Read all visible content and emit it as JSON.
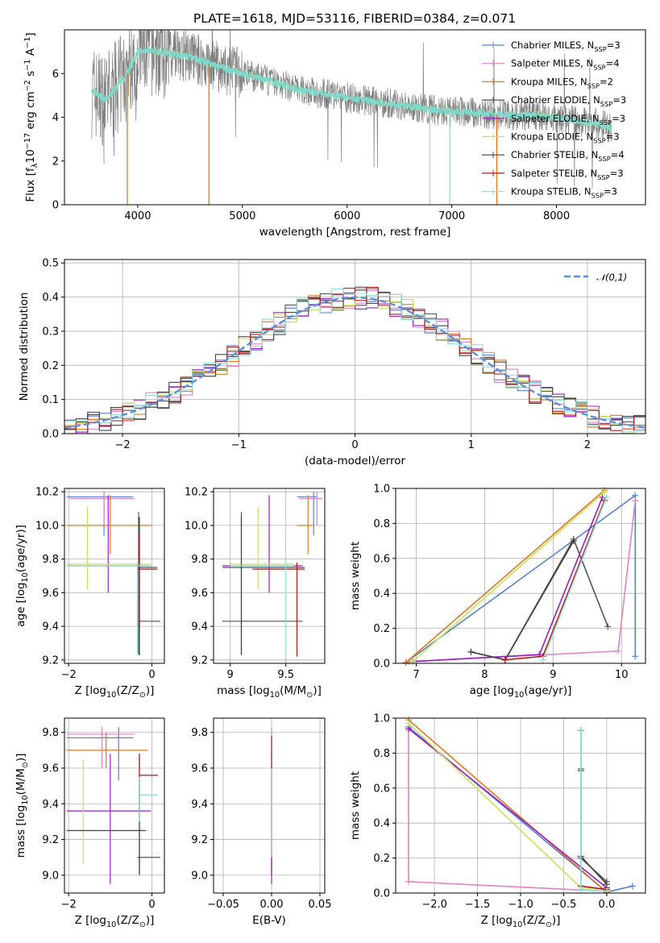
{
  "title": "PLATE=1618, MJD=53116, FIBERID=0384, z=0.071",
  "legend": [
    {
      "label": "Chabrier MILES, N<sub>SSP</sub>=3",
      "color": "#5a7fd6"
    },
    {
      "label": "Salpeter MILES, N<sub>SSP</sub>=4",
      "color": "#e383c0"
    },
    {
      "label": "Kroupa MILES, N<sub>SSP</sub>=2",
      "color": "#e07a1f"
    },
    {
      "label": "Chabrier ELODIE, N<sub>SSP</sub>=3",
      "color": "#555555"
    },
    {
      "label": "Salpeter ELODIE, N<sub>SSP</sub>=3",
      "color": "#9b1fc1"
    },
    {
      "label": "Kroupa ELODIE, N<sub>SSP</sub>=3",
      "color": "#c6e35a"
    },
    {
      "label": "Chabrier STELIB, N<sub>SSP</sub>=4",
      "color": "#444444"
    },
    {
      "label": "Salpeter STELIB, N<sub>SSP</sub>=3",
      "color": "#b01c1c"
    },
    {
      "label": "Kroupa STELIB, N<sub>SSP</sub>=3",
      "color": "#8fe0dc"
    }
  ],
  "chart_data": [
    {
      "id": "spectrum",
      "type": "line",
      "xlabel": "wavelength [Angstrom, rest frame]",
      "ylabel": "Flux [f<sub>λ</sub>10<sup>−17</sup> erg cm<sup>−2</sup> s<sup>−1</sup> A<sup>−1</sup>]",
      "xlim": [
        3300,
        8850
      ],
      "ylim": [
        0,
        8
      ],
      "xticks": [
        4000,
        5000,
        6000,
        7000,
        8000
      ],
      "yticks": [
        0,
        2,
        4,
        6
      ],
      "data_color": "#808080",
      "model_color": "#7ad9d3",
      "continuum_x": [
        3560,
        3700,
        3900,
        4000,
        4100,
        4300,
        4500,
        4700,
        5000,
        5300,
        5600,
        6000,
        6300,
        6600,
        6900,
        7200,
        7500,
        7800,
        8100,
        8400,
        8530
      ],
      "continuum_y": [
        5.2,
        4.8,
        6.0,
        7.0,
        7.1,
        6.9,
        6.8,
        6.4,
        6.0,
        5.6,
        5.2,
        4.9,
        4.7,
        4.5,
        4.3,
        4.2,
        4.1,
        4.1,
        3.9,
        3.7,
        3.5
      ],
      "model_dips": [
        {
          "x": 3900,
          "color": "#e07a1f"
        },
        {
          "x": 4680,
          "color": "#e07a1f"
        },
        {
          "x": 6790,
          "color": "#8fe0dc"
        },
        {
          "x": 6980,
          "color": "#8fe0dc"
        },
        {
          "x": 7430,
          "color": "#e07a1f"
        }
      ]
    },
    {
      "id": "residuals",
      "type": "histogram",
      "xlabel": "(data-model)/error",
      "ylabel": "Normed distribution",
      "xlim": [
        -2.5,
        2.5
      ],
      "ylim": [
        0,
        0.51
      ],
      "xticks": [
        -2,
        -1,
        0,
        1,
        2
      ],
      "yticks": [
        0.0,
        0.1,
        0.2,
        0.3,
        0.4,
        0.5
      ],
      "bin_width": 0.1,
      "gaussian_label": "𝒩(0,1)",
      "gaussian_color": "#5b8fd9"
    },
    {
      "id": "age-vs-Z",
      "type": "errorbar",
      "xlabel": "Z [log<sub>10</sub>(<i>Z</i>/<i>Z</i><sub>⊙</sub>)]",
      "ylabel": "age  [log<sub>10</sub>(<i>age</i>/<i>yr</i>)]",
      "xlim": [
        -2.1,
        0.3
      ],
      "ylim": [
        9.18,
        10.22
      ],
      "xticks": [
        -2,
        0
      ],
      "yticks": [
        9.2,
        9.4,
        9.6,
        9.8,
        10.0,
        10.2
      ],
      "points": [
        {
          "x": -1.15,
          "y": 10.17,
          "xlo": -2.05,
          "xhi": -0.45,
          "ylo": 9.94,
          "yhi": 10.2,
          "color": "#5a7fd6"
        },
        {
          "x": -1.15,
          "y": 10.16,
          "xlo": -2.0,
          "xhi": -0.42,
          "ylo": 10.0,
          "yhi": 10.2,
          "color": "#e383c0"
        },
        {
          "x": -1.0,
          "y": 10.0,
          "xlo": -2.05,
          "xhi": 0.0,
          "ylo": 9.83,
          "yhi": 10.18,
          "color": "#e07a1f"
        },
        {
          "x": -0.32,
          "y": 9.43,
          "xlo": -0.35,
          "xhi": 0.2,
          "ylo": 9.23,
          "yhi": 10.08,
          "color": "#555555"
        },
        {
          "x": -1.05,
          "y": 9.76,
          "xlo": -2.05,
          "xhi": -0.02,
          "ylo": 9.6,
          "yhi": 10.18,
          "color": "#9b1fc1"
        },
        {
          "x": -1.55,
          "y": 9.77,
          "xlo": -2.05,
          "xhi": -0.02,
          "ylo": 9.62,
          "yhi": 10.11,
          "color": "#c6e35a"
        },
        {
          "x": -0.3,
          "y": 9.75,
          "xlo": -0.35,
          "xhi": 0.13,
          "ylo": 9.23,
          "yhi": 10.05,
          "color": "#444444"
        },
        {
          "x": -0.3,
          "y": 9.74,
          "xlo": -0.35,
          "xhi": 0.13,
          "ylo": 9.4,
          "yhi": 9.95,
          "color": "#b01c1c"
        },
        {
          "x": -0.35,
          "y": 9.76,
          "xlo": -2.05,
          "xhi": -0.02,
          "ylo": 9.24,
          "yhi": 9.78,
          "color": "#8fe0dc"
        }
      ]
    },
    {
      "id": "age-vs-mass",
      "type": "errorbar",
      "xlabel": "mass [log<sub>10</sub>(<i>M</i>/<i>M</i><sub>⊙</sub>)]",
      "ylabel": "",
      "xlim": [
        8.85,
        9.85
      ],
      "ylim": [
        9.18,
        10.22
      ],
      "xticks": [
        9.0,
        9.5
      ],
      "yticks": [
        9.2,
        9.4,
        9.6,
        9.8,
        10.0,
        10.2
      ],
      "points": [
        {
          "x": 9.75,
          "y": 10.17,
          "xlo": 9.6,
          "xhi": 9.78,
          "ylo": 9.94,
          "yhi": 10.2,
          "color": "#5a7fd6"
        },
        {
          "x": 9.78,
          "y": 10.16,
          "xlo": 9.62,
          "xhi": 9.83,
          "ylo": 10.0,
          "yhi": 10.2,
          "color": "#e383c0"
        },
        {
          "x": 9.7,
          "y": 10.0,
          "xlo": 9.6,
          "xhi": 9.75,
          "ylo": 9.83,
          "yhi": 10.18,
          "color": "#e07a1f"
        },
        {
          "x": 9.1,
          "y": 9.43,
          "xlo": 8.93,
          "xhi": 9.65,
          "ylo": 9.23,
          "yhi": 10.08,
          "color": "#555555"
        },
        {
          "x": 9.35,
          "y": 9.76,
          "xlo": 8.93,
          "xhi": 9.65,
          "ylo": 9.6,
          "yhi": 10.18,
          "color": "#9b1fc1"
        },
        {
          "x": 9.25,
          "y": 9.77,
          "xlo": 9.0,
          "xhi": 9.57,
          "ylo": 9.62,
          "yhi": 10.11,
          "color": "#c6e35a"
        },
        {
          "x": 9.1,
          "y": 9.75,
          "xlo": 8.93,
          "xhi": 9.67,
          "ylo": 9.23,
          "yhi": 10.05,
          "color": "#444444"
        },
        {
          "x": 9.6,
          "y": 9.74,
          "xlo": 9.2,
          "xhi": 9.67,
          "ylo": 9.22,
          "yhi": 9.78,
          "color": "#b01c1c"
        },
        {
          "x": 9.5,
          "y": 9.76,
          "xlo": 9.0,
          "xhi": 9.57,
          "ylo": 9.24,
          "yhi": 9.78,
          "color": "#8fe0dc"
        }
      ]
    },
    {
      "id": "mass-weight-vs-age",
      "type": "line",
      "xlabel": "age  [log<sub>10</sub>(<i>age</i>/<i>yr</i>)]",
      "ylabel": "mass weight",
      "xlim": [
        6.7,
        10.35
      ],
      "ylim": [
        0,
        1.0
      ],
      "xticks": [
        7,
        8,
        9,
        10
      ],
      "yticks": [
        0.0,
        0.2,
        0.4,
        0.6,
        0.8,
        1.0
      ],
      "series": [
        {
          "color": "#5a7fd6",
          "x": [
            6.85,
            10.2,
            10.2
          ],
          "y": [
            0.005,
            0.96,
            0.04
          ]
        },
        {
          "color": "#e383c0",
          "x": [
            6.9,
            9.95,
            10.2,
            10.2
          ],
          "y": [
            0.01,
            0.07,
            0.93,
            0.93
          ]
        },
        {
          "color": "#e07a1f",
          "x": [
            6.85,
            9.75
          ],
          "y": [
            0.005,
            0.99
          ]
        },
        {
          "color": "#555555",
          "x": [
            7.8,
            8.3,
            9.3,
            9.8
          ],
          "y": [
            0.065,
            0.02,
            0.71,
            0.21
          ]
        },
        {
          "color": "#9b1fc1",
          "x": [
            6.95,
            8.8,
            9.72
          ],
          "y": [
            0.01,
            0.05,
            0.95
          ]
        },
        {
          "color": "#c6e35a",
          "x": [
            6.95,
            9.75
          ],
          "y": [
            0.01,
            0.98
          ]
        },
        {
          "color": "#444444",
          "x": [
            7.8,
            8.3,
            9.3
          ],
          "y": [
            0.065,
            0.02,
            0.7
          ]
        },
        {
          "color": "#b01c1c",
          "x": [
            8.3,
            8.85,
            9.75
          ],
          "y": [
            0.02,
            0.04,
            0.93
          ]
        },
        {
          "color": "#8fe0dc",
          "x": [
            8.85,
            9.78
          ],
          "y": [
            0.02,
            0.95
          ]
        }
      ]
    },
    {
      "id": "mass-vs-Z",
      "type": "errorbar",
      "xlabel": "Z [log<sub>10</sub>(<i>Z</i>/<i>Z</i><sub>⊙</sub>)]",
      "ylabel": "mass [log<sub>10</sub>(<i>M</i>/<i>M</i><sub>⊙</sub>)]",
      "xlim": [
        -2.1,
        0.3
      ],
      "ylim": [
        8.9,
        9.88
      ],
      "xticks": [
        -2,
        0
      ],
      "yticks": [
        9.0,
        9.2,
        9.4,
        9.6,
        9.8
      ],
      "points": [
        {
          "x": -0.8,
          "y": 9.77,
          "xlo": -2.05,
          "xhi": -0.45,
          "ylo": 9.53,
          "yhi": 9.83,
          "color": "#5a7fd6"
        },
        {
          "x": -1.2,
          "y": 9.79,
          "xlo": -2.05,
          "xhi": -0.42,
          "ylo": 9.6,
          "yhi": 9.83,
          "color": "#e383c0"
        },
        {
          "x": -1.1,
          "y": 9.7,
          "xlo": -2.05,
          "xhi": -0.1,
          "ylo": 9.6,
          "yhi": 9.8,
          "color": "#e07a1f"
        },
        {
          "x": -0.3,
          "y": 9.1,
          "xlo": -0.35,
          "xhi": 0.2,
          "ylo": 9.01,
          "yhi": 9.5,
          "color": "#555555"
        },
        {
          "x": -1.0,
          "y": 9.36,
          "xlo": -2.05,
          "xhi": -0.02,
          "ylo": 8.95,
          "yhi": 9.68,
          "color": "#9b1fc1"
        },
        {
          "x": -1.65,
          "y": 9.25,
          "xlo": -2.05,
          "xhi": -0.1,
          "ylo": 9.06,
          "yhi": 9.65,
          "color": "#c6e35a"
        },
        {
          "x": -0.3,
          "y": 9.25,
          "xlo": -2.05,
          "xhi": -0.15,
          "ylo": 9.0,
          "yhi": 9.68,
          "color": "#444444"
        },
        {
          "x": -0.3,
          "y": 9.56,
          "xlo": -0.3,
          "xhi": 0.15,
          "ylo": 9.4,
          "yhi": 9.68,
          "color": "#b01c1c"
        },
        {
          "x": -0.3,
          "y": 9.45,
          "xlo": -0.3,
          "xhi": 0.15,
          "ylo": 9.3,
          "yhi": 9.55,
          "color": "#8fe0dc"
        }
      ]
    },
    {
      "id": "mass-vs-ebv",
      "type": "errorbar",
      "xlabel": "E(B-V)",
      "ylabel": "",
      "xlim": [
        -0.06,
        0.055
      ],
      "ylim": [
        8.9,
        9.88
      ],
      "xticks": [
        -0.05,
        0.0,
        0.05
      ],
      "xtick_labels": [
        "−0.05",
        "0.00",
        "0.05"
      ],
      "yticks": [
        9.0,
        9.2,
        9.4,
        9.6,
        9.8
      ],
      "points": [
        {
          "x": 0.0,
          "y": 9.77,
          "xlo": 0.0,
          "xhi": 0.0,
          "ylo": 9.0,
          "yhi": 9.83,
          "color": "#e383c0"
        },
        {
          "x": 0.0,
          "y": 9.56,
          "xlo": 0.0,
          "xhi": 0.0,
          "ylo": 9.0,
          "yhi": 9.78,
          "color": "#b01c1c"
        },
        {
          "x": 0.0,
          "y": 9.36,
          "xlo": 0.0,
          "xhi": 0.0,
          "ylo": 8.95,
          "yhi": 9.68,
          "color": "#9b1fc1"
        },
        {
          "x": 0.0,
          "y": 9.45,
          "xlo": 0.0,
          "xhi": 0.0,
          "ylo": 9.1,
          "yhi": 9.6,
          "color": "#8fe0dc"
        }
      ]
    },
    {
      "id": "mass-weight-vs-Z",
      "type": "line",
      "xlabel": "Z [log<sub>10</sub>(<i>Z</i>/<i>Z</i><sub>⊙</sub>)]",
      "ylabel": "mass weight",
      "xlim": [
        -2.45,
        0.45
      ],
      "ylim": [
        0,
        1.0
      ],
      "xticks": [
        -2.0,
        -1.5,
        -1.0,
        -0.5,
        0.0
      ],
      "xtick_labels": [
        "−2.0",
        "−1.5",
        "−1.0",
        "−0.5",
        "0.0"
      ],
      "yticks": [
        0.0,
        0.2,
        0.4,
        0.6,
        0.8,
        1.0
      ],
      "series": [
        {
          "color": "#5a7fd6",
          "x": [
            -2.3,
            0.0,
            0.3
          ],
          "y": [
            0.95,
            0.005,
            0.04
          ]
        },
        {
          "color": "#e383c0",
          "x": [
            -2.3,
            -2.3,
            0.0
          ],
          "y": [
            0.93,
            0.065,
            0.01
          ]
        },
        {
          "color": "#e07a1f",
          "x": [
            -2.3,
            0.0
          ],
          "y": [
            0.99,
            0.005
          ]
        },
        {
          "color": "#555555",
          "x": [
            -0.3,
            -0.3,
            -0.3,
            0.0
          ],
          "y": [
            0.93,
            0.71,
            0.2,
            0.065
          ]
        },
        {
          "color": "#9b1fc1",
          "x": [
            -2.3,
            0.0
          ],
          "y": [
            0.94,
            0.03
          ]
        },
        {
          "color": "#c6e35a",
          "x": [
            -2.3,
            -0.3,
            0.0
          ],
          "y": [
            0.97,
            0.03,
            0.02
          ]
        },
        {
          "color": "#444444",
          "x": [
            -0.3,
            -0.3,
            0.0
          ],
          "y": [
            0.7,
            0.21,
            0.05
          ]
        },
        {
          "color": "#b01c1c",
          "x": [
            -0.3,
            -0.3,
            0.0
          ],
          "y": [
            0.93,
            0.04,
            0.02
          ]
        },
        {
          "color": "#8fe0dc",
          "x": [
            -0.3,
            -0.3,
            0.0
          ],
          "y": [
            0.93,
            0.02,
            0.01
          ]
        }
      ]
    }
  ]
}
